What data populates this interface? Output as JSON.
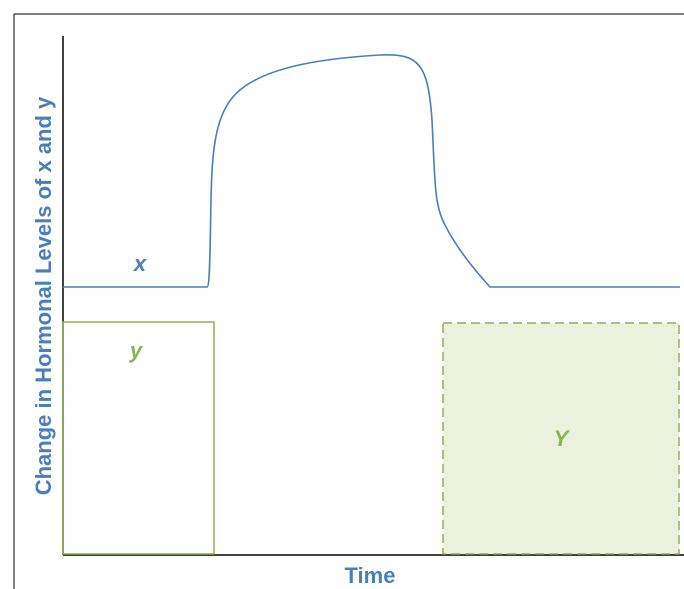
{
  "diagram": {
    "y_axis_title": "Change in Hormonal Levels of x and y",
    "x_axis_title": "Time",
    "curve_x": {
      "label": "x",
      "color": "#4a7ebb"
    },
    "box_y_initial": {
      "label": "y",
      "color": "#8db255"
    },
    "box_y_final": {
      "label": "Y",
      "color": "#8db255",
      "fill": "#ebf1dd"
    },
    "axis_color": "#000000",
    "title_color": "#4a7ebb"
  }
}
